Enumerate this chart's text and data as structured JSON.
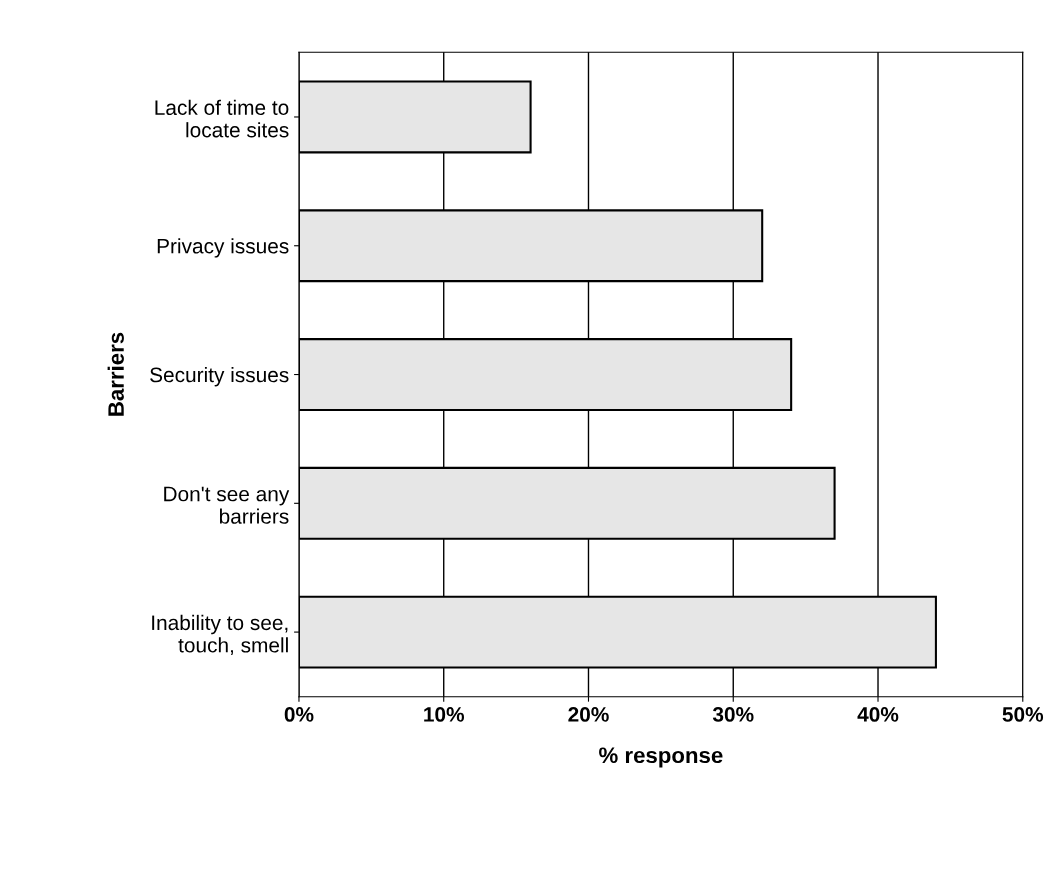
{
  "chart_data": {
    "type": "bar",
    "orientation": "horizontal",
    "xlabel": "% response",
    "ylabel": "Barriers",
    "categories": [
      "Lack of time to\nlocate sites",
      "Privacy issues",
      "Security issues",
      "Don't see any\nbarriers",
      "Inability to see,\ntouch, smell"
    ],
    "values": [
      16,
      32,
      34,
      37,
      44
    ],
    "color": "#e6e6e6",
    "xlim": [
      0,
      50
    ],
    "xticks": [
      {
        "value": 0,
        "label": "0%"
      },
      {
        "value": 10,
        "label": "10%"
      },
      {
        "value": 20,
        "label": "20%"
      },
      {
        "value": 30,
        "label": "30%"
      },
      {
        "value": 40,
        "label": "40%"
      },
      {
        "value": 50,
        "label": "50%"
      }
    ],
    "grid": "x",
    "legend": false
  }
}
